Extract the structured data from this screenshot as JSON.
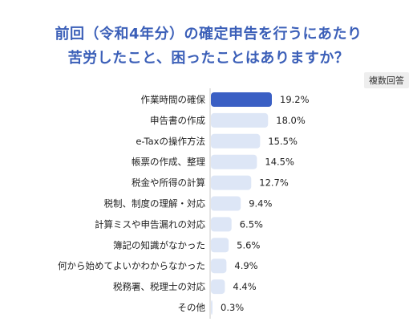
{
  "title": {
    "line1": "前回（令和4年分）の確定申告を行うにあたり",
    "line2": "苦労したこと、困ったことはありますか？"
  },
  "badge": "複数回答",
  "colors": {
    "title": "#3b5fb8",
    "highlight_bar": "#3a5fc4",
    "bar": "#dde6f6",
    "axis": "#c8c8c8"
  },
  "chart_data": {
    "type": "bar",
    "orientation": "horizontal",
    "title": "前回（令和4年分）の確定申告を行うにあたり苦労したこと、困ったことはありますか？",
    "unit": "%",
    "categories": [
      "作業時間の確保",
      "申告書の作成",
      "e-Taxの操作方法",
      "帳票の作成、整理",
      "税金や所得の計算",
      "税制、制度の理解・対応",
      "計算ミスや申告漏れの対応",
      "簿記の知識がなかった",
      "何から始めてよいかわからなかった",
      "税務署、税理士の対応",
      "その他"
    ],
    "values": [
      19.2,
      18.0,
      15.5,
      14.5,
      12.7,
      9.4,
      6.5,
      5.6,
      4.9,
      4.4,
      0.3
    ],
    "value_labels": [
      "19.2%",
      "18.0%",
      "15.5%",
      "14.5%",
      "12.7%",
      "9.4%",
      "6.5%",
      "5.6%",
      "4.9%",
      "4.4%",
      "0.3%"
    ],
    "highlight_index": 0,
    "xlim": [
      0,
      19.2
    ]
  }
}
